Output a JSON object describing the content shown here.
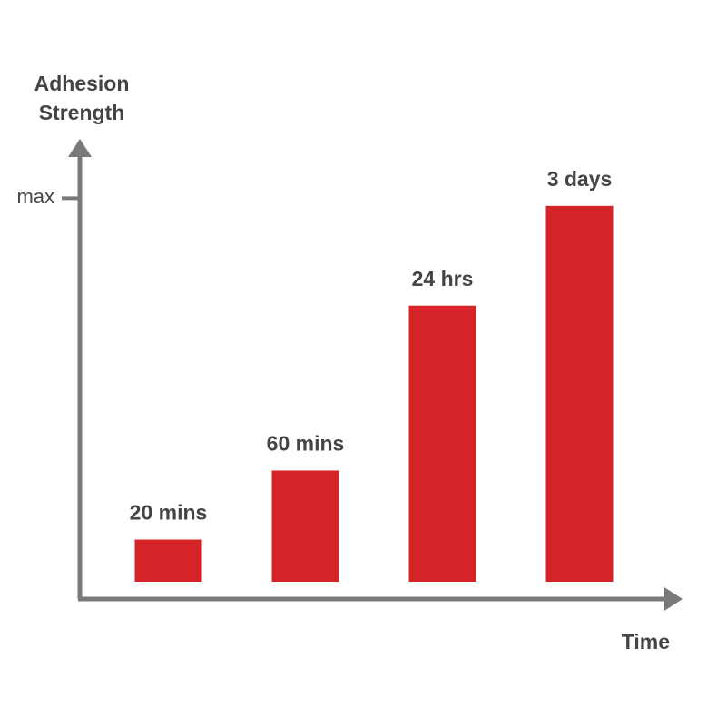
{
  "chart_data": {
    "type": "bar",
    "y_label": "Adhesion Strength",
    "x_label": "Time",
    "categories": [
      "20 mins",
      "60 mins",
      "24 hrs",
      "3 days"
    ],
    "values": [
      11,
      29,
      72,
      98
    ],
    "color": "#d42427",
    "ylim": [
      0,
      115
    ],
    "yticks": [
      {
        "value": 100,
        "label": "max"
      }
    ]
  }
}
